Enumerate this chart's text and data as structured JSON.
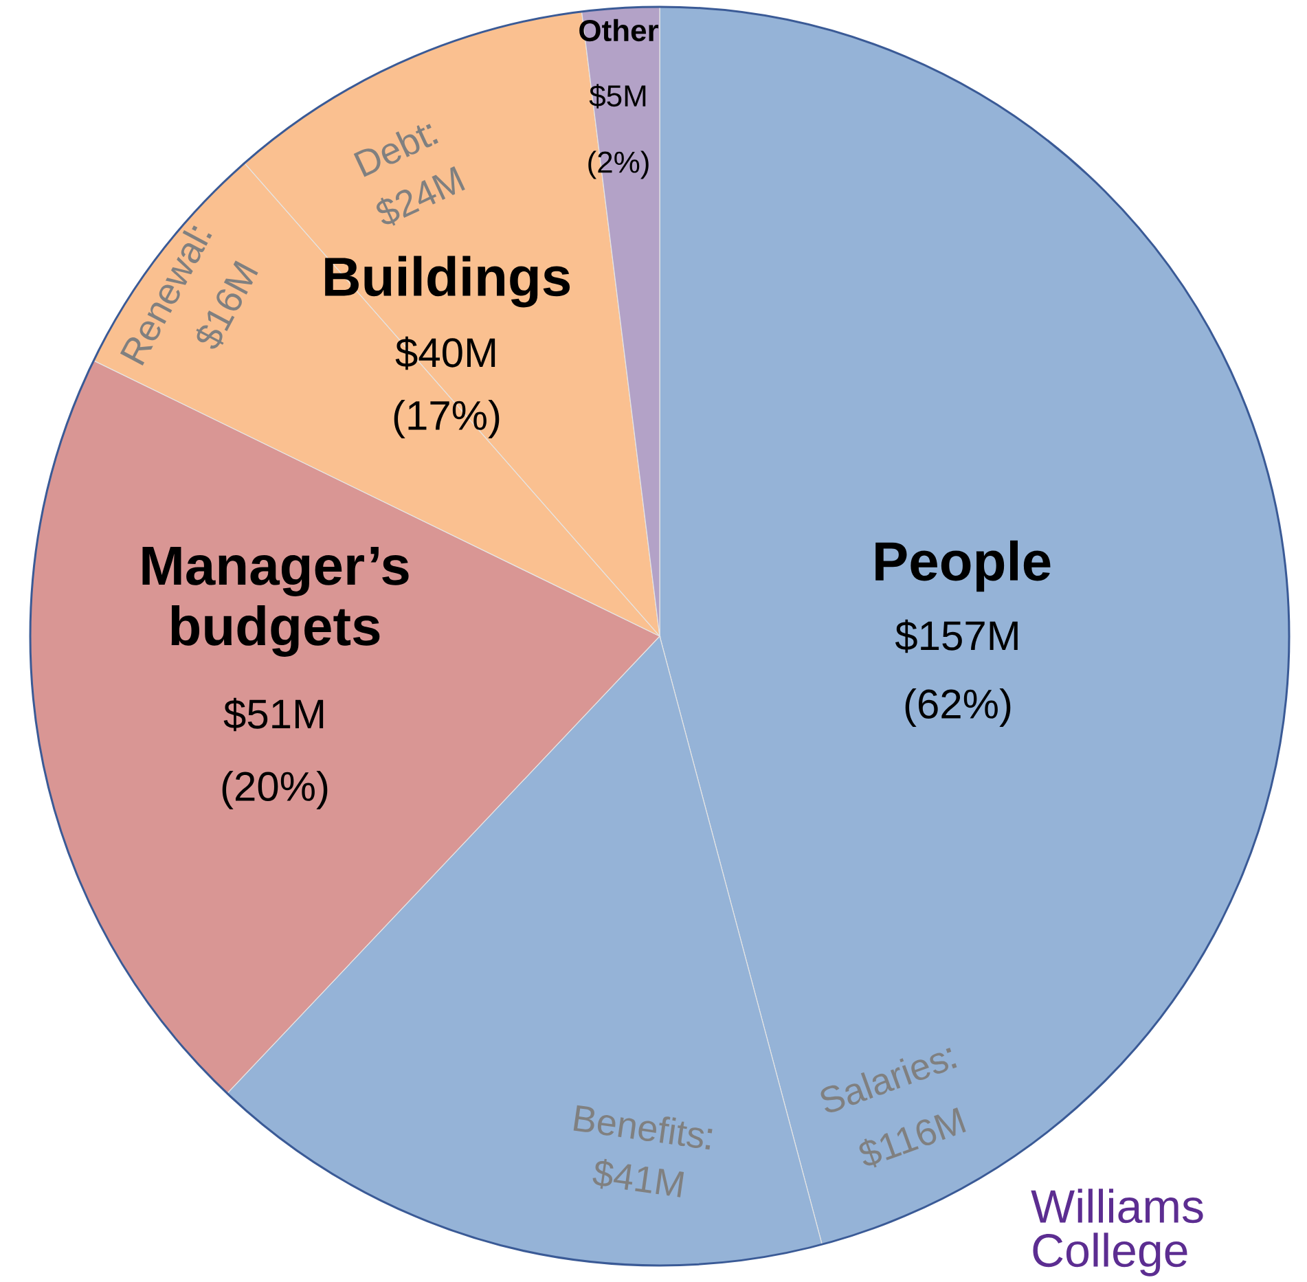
{
  "chart_data": {
    "type": "pie",
    "categories": [
      "Salaries",
      "Benefits",
      "Manager’s budgets",
      "Renewal",
      "Debt",
      "Other"
    ],
    "values": [
      116,
      41,
      51,
      16,
      24,
      5
    ],
    "value_labels": [
      "$116M",
      "$41M",
      "$51M",
      "$16M",
      "$24M",
      "$5M"
    ],
    "colors": [
      "#95b3d7",
      "#95b3d7",
      "#d99694",
      "#fac090",
      "#fac090",
      "#b3a2c7"
    ],
    "annotations": [
      "People",
      "$157M",
      "(62%)",
      "Buildings",
      "$40M",
      "(17%)",
      "(20%)",
      "(2%)",
      "Williams College"
    ]
  }
}
